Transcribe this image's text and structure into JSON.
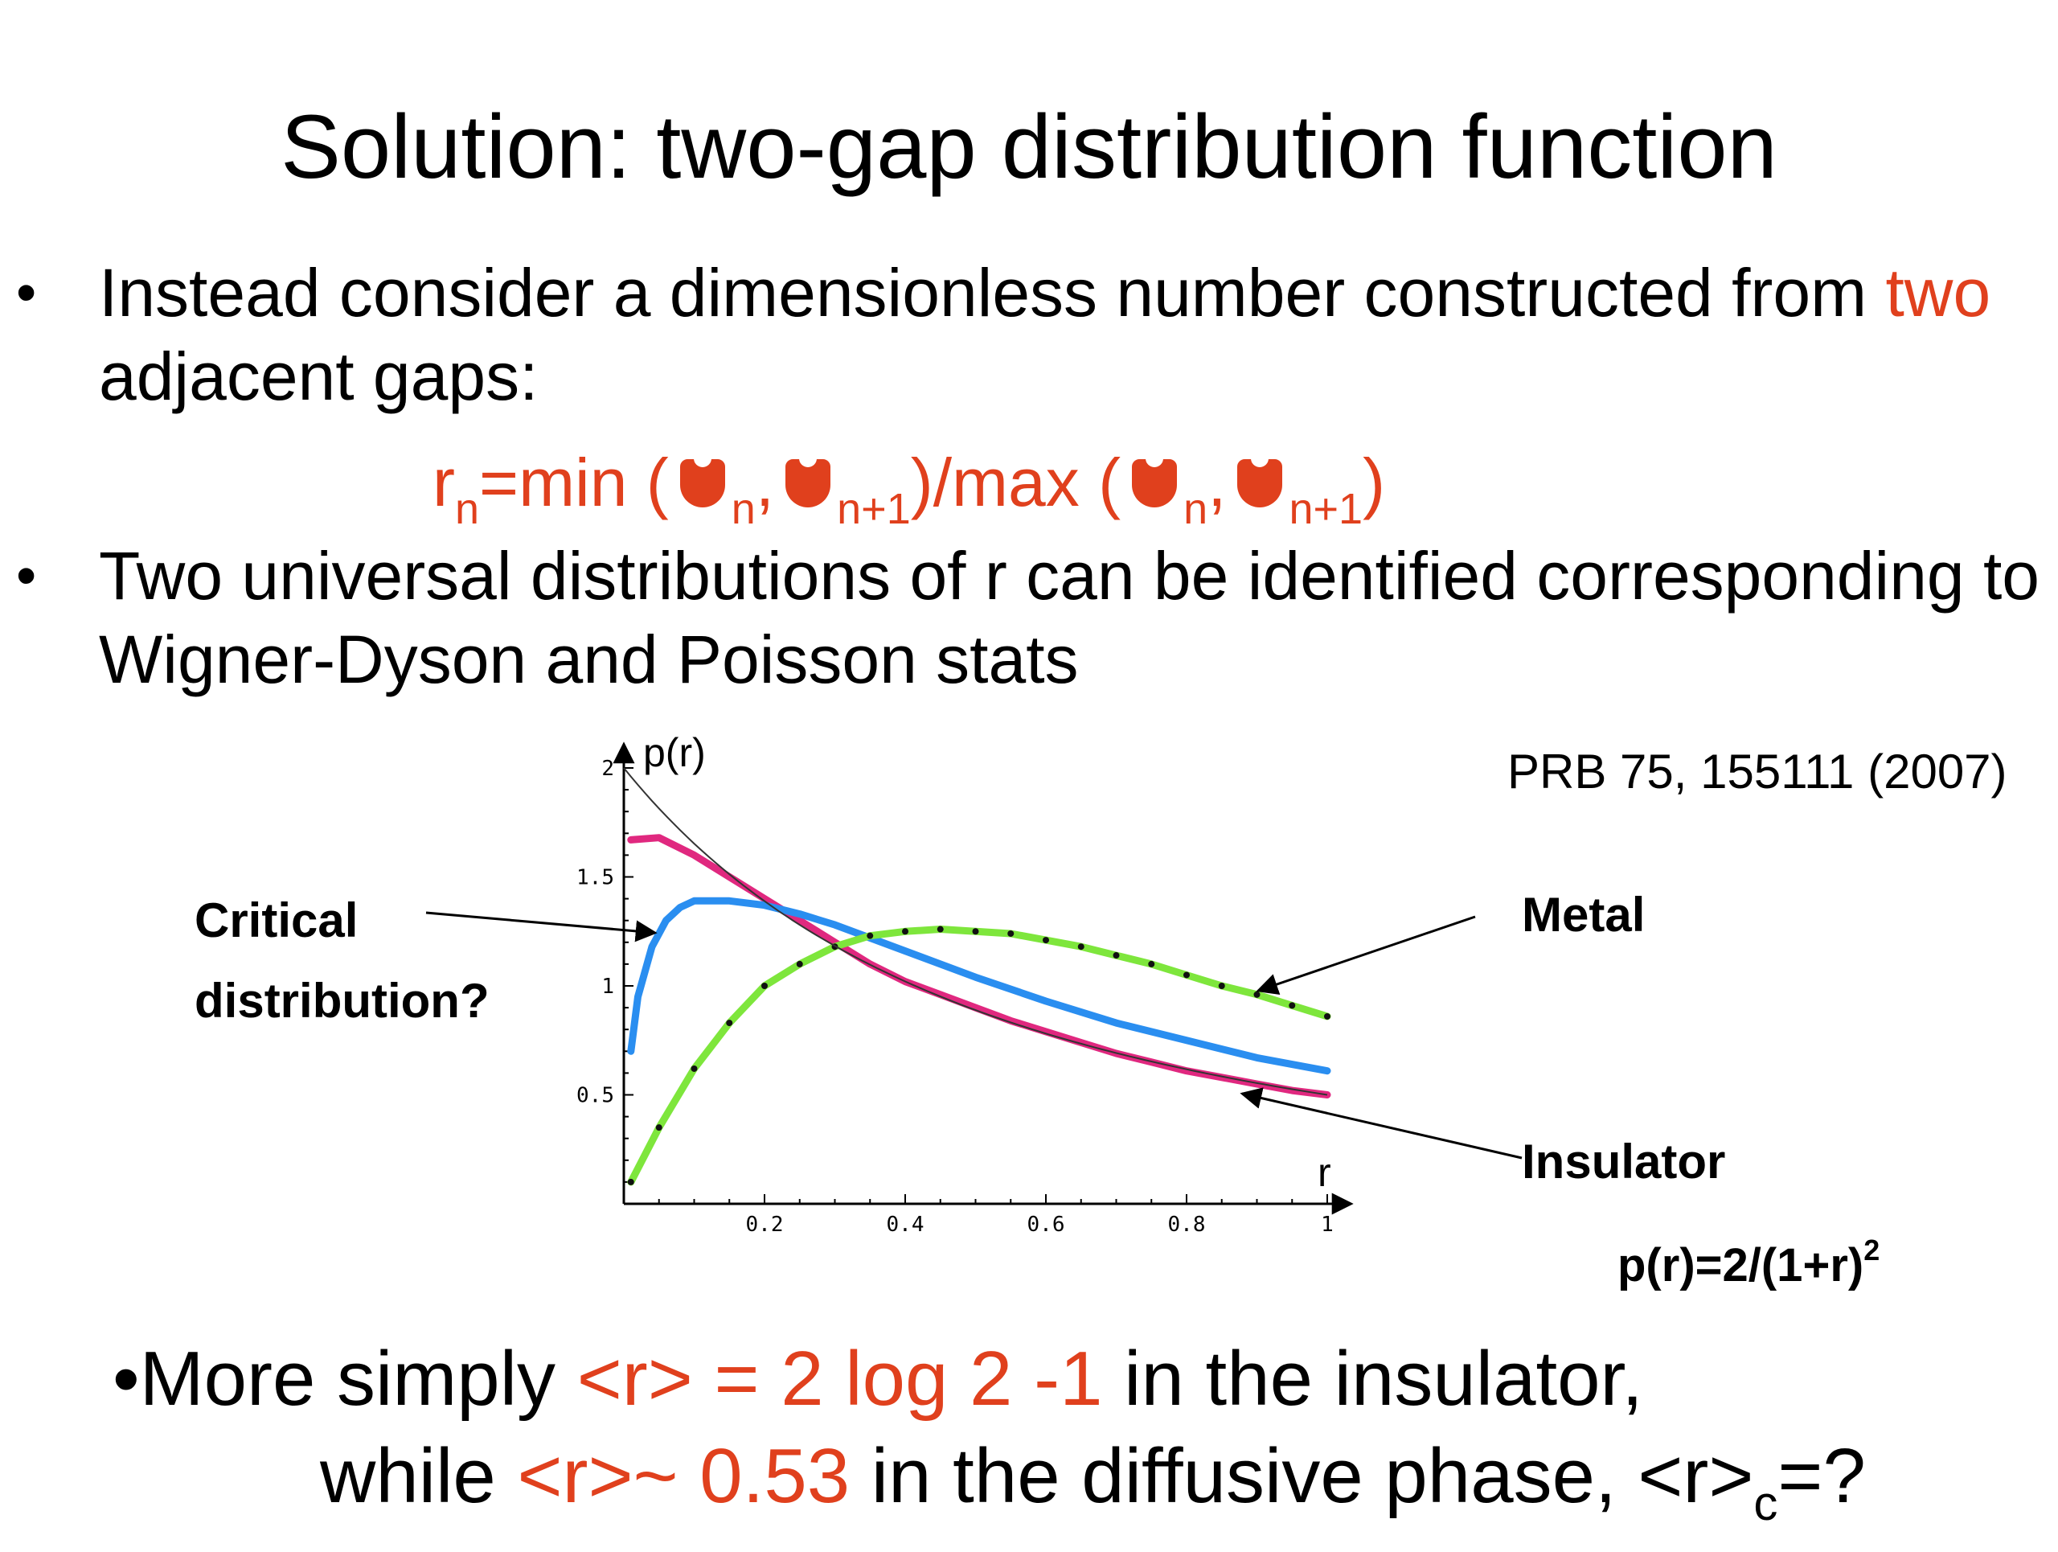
{
  "slide": {
    "title": "Solution: two-gap distribution function",
    "bullet_char": "•",
    "bullet1": {
      "text_before": "Instead consider a dimensionless number constructed from ",
      "highlight": "two",
      "text_after": "adjacent gaps:"
    },
    "formula": {
      "r": "r",
      "n": "n",
      "eq_min": "=min (",
      "sep": ",",
      "n1": "n+1",
      "mid": ")/max (",
      "close": ")",
      "delta_icon": "delta-icon"
    },
    "bullet2": {
      "text": "Two universal distributions of r can be identified corresponding to Wigner-Dyson and Poisson stats"
    },
    "reference": "PRB 75, 155111 (2007)",
    "labels": {
      "critical": "Critical distribution?",
      "metal": "Metal",
      "insulator": "Insulator",
      "pr_formula_base": "p(r)=2/(1+r)",
      "pr_formula_sup": "2"
    },
    "bottom": {
      "line1_prefix": "•More simply ",
      "line1_highlight": "<r> = 2 log 2 -1",
      "line1_suffix": " in the insulator,",
      "line2_prefix": "while ",
      "line2_highlight": "<r>~ 0.53",
      "line2_suffix": " in the diffusive phase, <r>",
      "line2_sub": "c",
      "line2_end": "=?"
    },
    "colors": {
      "accent_red": "#e0401d",
      "insulator_magenta": "#e0287f",
      "critical_blue": "#2a8ef0",
      "metal_green": "#7ee63c"
    }
  },
  "chart_data": {
    "type": "line",
    "xlabel": "r",
    "ylabel": "p(r)",
    "xlim": [
      0,
      1
    ],
    "ylim": [
      0,
      2
    ],
    "xticks": [
      "0.2",
      "0.4",
      "0.6",
      "0.8",
      "1"
    ],
    "yticks": [
      "0.5",
      "1",
      "1.5",
      "2"
    ],
    "grid": false,
    "series": [
      {
        "name": "Insulator",
        "color": "#e0287f",
        "x": [
          0.01,
          0.05,
          0.1,
          0.15,
          0.2,
          0.25,
          0.3,
          0.35,
          0.4,
          0.45,
          0.5,
          0.55,
          0.6,
          0.65,
          0.7,
          0.75,
          0.8,
          0.85,
          0.9,
          0.95,
          1.0
        ],
        "y": [
          1.67,
          1.68,
          1.6,
          1.5,
          1.4,
          1.3,
          1.2,
          1.1,
          1.02,
          0.96,
          0.9,
          0.84,
          0.79,
          0.74,
          0.69,
          0.65,
          0.61,
          0.58,
          0.55,
          0.52,
          0.5
        ]
      },
      {
        "name": "Critical distribution?",
        "color": "#2a8ef0",
        "x": [
          0.01,
          0.02,
          0.04,
          0.06,
          0.08,
          0.1,
          0.15,
          0.2,
          0.25,
          0.3,
          0.35,
          0.4,
          0.5,
          0.6,
          0.7,
          0.8,
          0.9,
          1.0
        ],
        "y": [
          0.7,
          0.95,
          1.18,
          1.3,
          1.36,
          1.39,
          1.39,
          1.37,
          1.33,
          1.28,
          1.22,
          1.16,
          1.04,
          0.93,
          0.83,
          0.75,
          0.67,
          0.61
        ]
      },
      {
        "name": "Metal",
        "color": "#7ee63c",
        "x": [
          0.01,
          0.05,
          0.1,
          0.15,
          0.2,
          0.25,
          0.3,
          0.35,
          0.4,
          0.45,
          0.5,
          0.55,
          0.6,
          0.65,
          0.7,
          0.75,
          0.8,
          0.85,
          0.9,
          0.95,
          1.0
        ],
        "y": [
          0.1,
          0.35,
          0.62,
          0.83,
          1.0,
          1.1,
          1.18,
          1.23,
          1.25,
          1.26,
          1.25,
          1.24,
          1.21,
          1.18,
          1.14,
          1.1,
          1.05,
          1.0,
          0.96,
          0.91,
          0.86
        ]
      },
      {
        "name": "p(r)=2/(1+r)^2",
        "color": "#333333",
        "formula": true
      }
    ]
  }
}
